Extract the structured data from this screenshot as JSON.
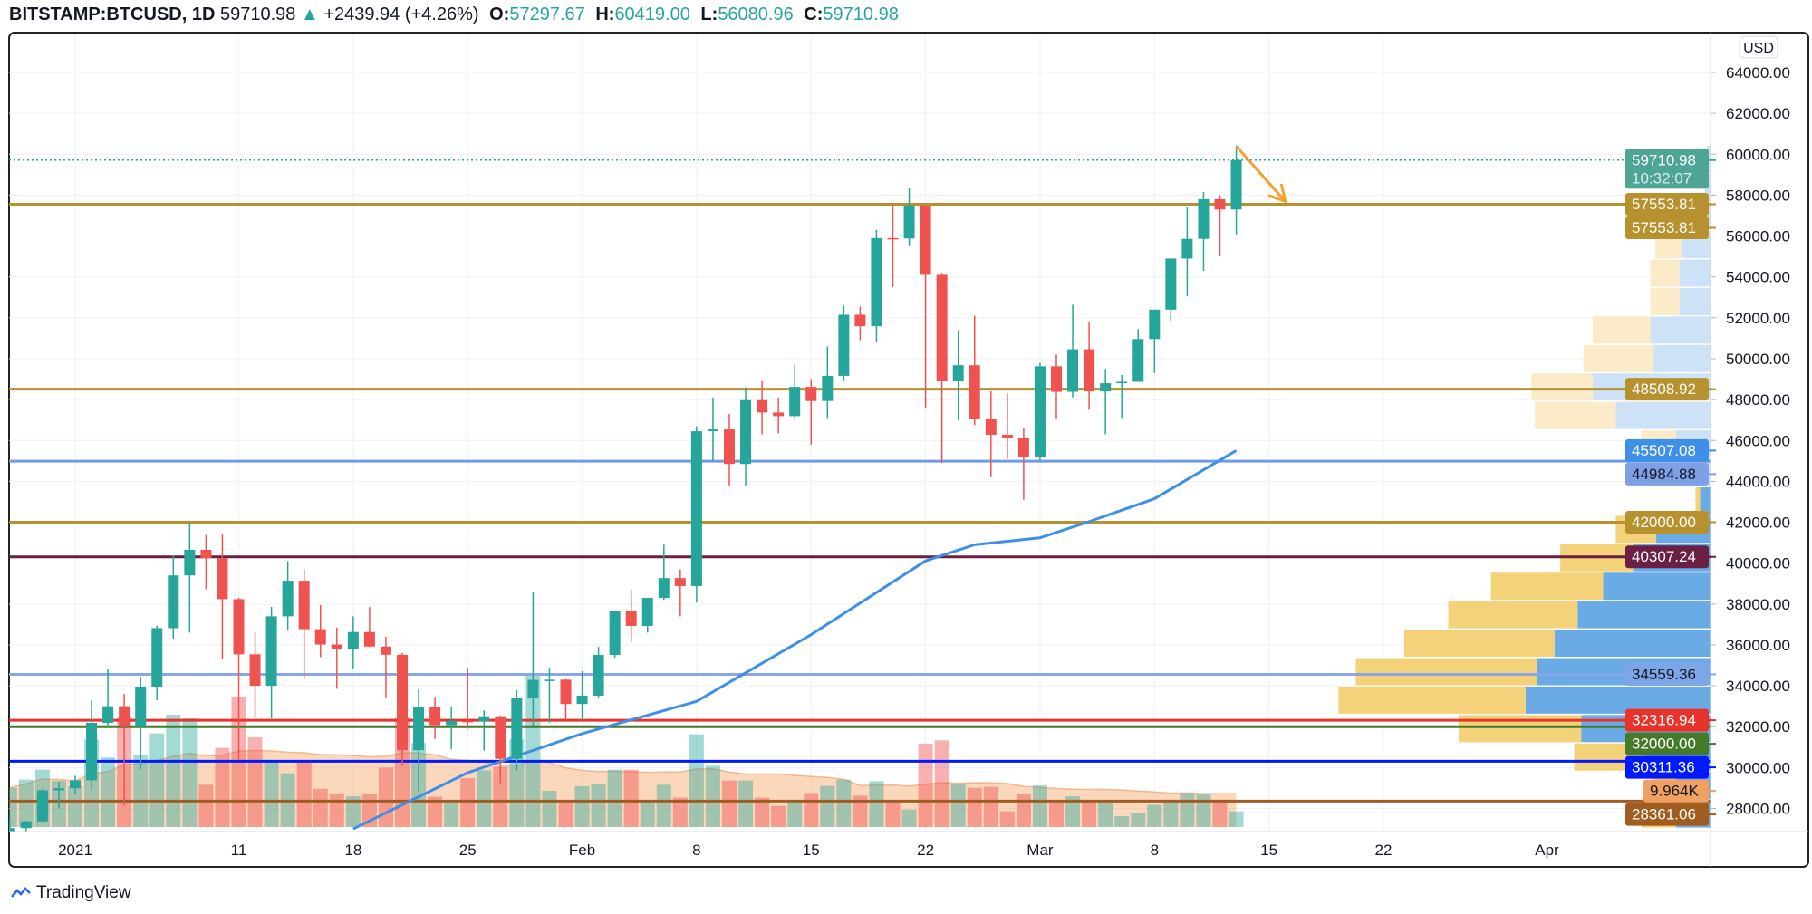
{
  "header": {
    "symbol": "BITSTAMP:BTCUSD, 1D",
    "last": "59710.98",
    "change": "+2439.94 (+4.26%)",
    "o_label": "O:",
    "o": "57297.67",
    "h_label": "H:",
    "h": "60419.00",
    "l_label": "L:",
    "l": "56080.96",
    "c_label": "C:",
    "c": "59710.98"
  },
  "currency_button": "USD",
  "countdown": "10:32:07",
  "logo_text": "TradingView",
  "colors": {
    "up": "#26a69a",
    "down": "#ef5350",
    "ma": "#3d8fe8",
    "vol_ma": "#f29a5c",
    "vp_up": "#6aabe6",
    "vp_down": "#f3d27a",
    "vp_up_light": "#cde2f6",
    "vp_down_light": "#fbebc8"
  },
  "chart_data": {
    "type": "candlestick",
    "xlabel": "",
    "ylabel": "",
    "ylim": [
      27000,
      65000
    ],
    "grid": true,
    "price_ticks": [
      "28000.00",
      "30000.00",
      "32000.00",
      "34000.00",
      "36000.00",
      "38000.00",
      "40000.00",
      "42000.00",
      "44000.00",
      "46000.00",
      "48000.00",
      "50000.00",
      "52000.00",
      "54000.00",
      "56000.00",
      "58000.00",
      "60000.00",
      "62000.00",
      "64000.00"
    ],
    "date_ticks": [
      {
        "date": "2021-01-01",
        "label": "2021"
      },
      {
        "date": "2021-01-11",
        "label": "11"
      },
      {
        "date": "2021-01-18",
        "label": "18"
      },
      {
        "date": "2021-01-25",
        "label": "25"
      },
      {
        "date": "2021-02-01",
        "label": "Feb"
      },
      {
        "date": "2021-02-08",
        "label": "8"
      },
      {
        "date": "2021-02-15",
        "label": "15"
      },
      {
        "date": "2021-02-22",
        "label": "22"
      },
      {
        "date": "2021-03-01",
        "label": "Mar"
      },
      {
        "date": "2021-03-08",
        "label": "8"
      },
      {
        "date": "2021-03-15",
        "label": "15"
      },
      {
        "date": "2021-03-22",
        "label": "22"
      },
      {
        "date": "2021-04-01",
        "label": "Apr"
      }
    ],
    "columns": [
      "date",
      "open",
      "high",
      "low",
      "close",
      "volume_k"
    ],
    "candles": [
      [
        "2020-12-28",
        26280,
        27500,
        26100,
        27040,
        24.9
      ],
      [
        "2020-12-29",
        27040,
        27400,
        25880,
        27370,
        30.1
      ],
      [
        "2020-12-30",
        27370,
        28990,
        27320,
        28890,
        36.4
      ],
      [
        "2020-12-31",
        28890,
        29300,
        28000,
        28990,
        29.3
      ],
      [
        "2021-01-01",
        28990,
        29600,
        28700,
        29380,
        25.9
      ],
      [
        "2021-01-02",
        29380,
        33300,
        28950,
        32190,
        55.6
      ],
      [
        "2021-01-03",
        32190,
        34800,
        31950,
        33000,
        44.1
      ],
      [
        "2021-01-04",
        33000,
        33600,
        28130,
        31990,
        70
      ],
      [
        "2021-01-05",
        31990,
        34440,
        29900,
        33960,
        46
      ],
      [
        "2021-01-06",
        33960,
        36940,
        33300,
        36820,
        59.4
      ],
      [
        "2021-01-07",
        36820,
        40360,
        36300,
        39400,
        71.3
      ],
      [
        "2021-01-08",
        39400,
        41950,
        36600,
        40650,
        69
      ],
      [
        "2021-01-09",
        40650,
        41380,
        38720,
        40240,
        26.8
      ],
      [
        "2021-01-10",
        40240,
        41400,
        35300,
        38240,
        50.2
      ],
      [
        "2021-01-11",
        38240,
        38300,
        30400,
        35540,
        82.8
      ],
      [
        "2021-01-12",
        35540,
        36630,
        32500,
        34000,
        56.9
      ],
      [
        "2021-01-13",
        34000,
        37860,
        32400,
        37400,
        41.6
      ],
      [
        "2021-01-14",
        37400,
        40100,
        36700,
        39140,
        34.1
      ],
      [
        "2021-01-15",
        39140,
        39700,
        34400,
        36770,
        41.6
      ],
      [
        "2021-01-16",
        36770,
        37950,
        35400,
        36020,
        24.3
      ],
      [
        "2021-01-17",
        36020,
        36850,
        33850,
        35800,
        21.1
      ],
      [
        "2021-01-18",
        35800,
        37400,
        34800,
        36630,
        19.5
      ],
      [
        "2021-01-19",
        36630,
        37850,
        35900,
        35920,
        20.7
      ],
      [
        "2021-01-20",
        35920,
        36400,
        33400,
        35520,
        37.7
      ],
      [
        "2021-01-21",
        35520,
        35600,
        30071,
        30850,
        70
      ],
      [
        "2021-01-22",
        30850,
        33830,
        28850,
        32940,
        53.3
      ],
      [
        "2021-01-23",
        32940,
        33460,
        31400,
        32080,
        19.2
      ],
      [
        "2021-01-24",
        32080,
        32960,
        30900,
        32280,
        14.9
      ],
      [
        "2021-01-25",
        32280,
        34880,
        31900,
        32260,
        31
      ],
      [
        "2021-01-26",
        32260,
        32800,
        30830,
        32510,
        36
      ],
      [
        "2021-01-27",
        32510,
        32550,
        29240,
        30430,
        38.3
      ],
      [
        "2021-01-28",
        30430,
        33780,
        29850,
        33410,
        55.6
      ],
      [
        "2021-01-29",
        33410,
        38600,
        31990,
        34290,
        97
      ],
      [
        "2021-01-30",
        34290,
        34880,
        32200,
        34300,
        23
      ],
      [
        "2021-01-31",
        34300,
        34330,
        32300,
        33110,
        15.3
      ],
      [
        "2021-02-01",
        33110,
        34720,
        32300,
        33520,
        25.9
      ],
      [
        "2021-02-02",
        33520,
        35900,
        33430,
        35510,
        27.2
      ],
      [
        "2021-02-03",
        35510,
        37660,
        35370,
        37660,
        36.4
      ],
      [
        "2021-02-04",
        37660,
        38700,
        36150,
        36930,
        36.4
      ],
      [
        "2021-02-05",
        36930,
        38300,
        36600,
        38300,
        15.7
      ],
      [
        "2021-02-06",
        38300,
        40900,
        38200,
        39270,
        26.8
      ],
      [
        "2021-02-07",
        39270,
        39700,
        37400,
        38880,
        18.6
      ],
      [
        "2021-02-08",
        38880,
        46700,
        38070,
        46450,
        58.8
      ],
      [
        "2021-02-09",
        46450,
        48100,
        45000,
        46540,
        38.9
      ],
      [
        "2021-02-10",
        46540,
        47300,
        43800,
        44850,
        29.5
      ],
      [
        "2021-02-11",
        44850,
        48600,
        43800,
        47970,
        29.5
      ],
      [
        "2021-02-12",
        47970,
        48900,
        46300,
        47370,
        18.6
      ],
      [
        "2021-02-13",
        47370,
        48100,
        46350,
        47190,
        13.4
      ],
      [
        "2021-02-14",
        47190,
        49700,
        47100,
        48620,
        15.7
      ],
      [
        "2021-02-15",
        48620,
        49000,
        45800,
        47930,
        21.6
      ],
      [
        "2021-02-16",
        47930,
        50600,
        47100,
        49160,
        26.1
      ],
      [
        "2021-02-17",
        49160,
        52600,
        48900,
        52150,
        30.1
      ],
      [
        "2021-02-18",
        52150,
        52550,
        50900,
        51590,
        19.9
      ],
      [
        "2021-02-19",
        51590,
        56300,
        50800,
        55900,
        29.1
      ],
      [
        "2021-02-20",
        55900,
        57500,
        53500,
        55880,
        15.7
      ],
      [
        "2021-02-21",
        55880,
        58350,
        55500,
        57490,
        11.1
      ],
      [
        "2021-02-22",
        57490,
        57530,
        47600,
        54100,
        52.9
      ],
      [
        "2021-02-23",
        54100,
        54200,
        44900,
        48890,
        55
      ],
      [
        "2021-02-24",
        48890,
        51400,
        47000,
        49680,
        27.2
      ],
      [
        "2021-02-25",
        49680,
        52100,
        46750,
        47060,
        24.9
      ],
      [
        "2021-02-26",
        47060,
        48400,
        44200,
        46280,
        25.5
      ],
      [
        "2021-02-27",
        46280,
        48300,
        45100,
        46110,
        10
      ],
      [
        "2021-02-28",
        46110,
        46600,
        43100,
        45170,
        20.9
      ],
      [
        "2021-03-01",
        45170,
        49800,
        45000,
        49630,
        26.4
      ],
      [
        "2021-03-02",
        49630,
        50200,
        47050,
        48380,
        15.7
      ],
      [
        "2021-03-03",
        48380,
        52640,
        48100,
        50460,
        19.5
      ],
      [
        "2021-03-04",
        50460,
        51800,
        47500,
        48400,
        15.7
      ],
      [
        "2021-03-05",
        48400,
        49500,
        46300,
        48800,
        15.7
      ],
      [
        "2021-03-06",
        48800,
        49200,
        47100,
        48870,
        6.9
      ],
      [
        "2021-03-07",
        48870,
        51450,
        48870,
        50960,
        9.2
      ],
      [
        "2021-03-08",
        50960,
        52400,
        49300,
        52400,
        14
      ],
      [
        "2021-03-09",
        52400,
        54900,
        51850,
        54900,
        15.7
      ],
      [
        "2021-03-10",
        54900,
        57400,
        53050,
        55860,
        21.6
      ],
      [
        "2021-03-11",
        55860,
        58150,
        54300,
        57800,
        20.9
      ],
      [
        "2021-03-12",
        57800,
        58000,
        55000,
        57297.67,
        15.7
      ],
      [
        "2021-03-13",
        57297.67,
        60419,
        56080.96,
        59710.98,
        9.964
      ]
    ],
    "moving_average": [
      [
        "2021-01-18",
        27000
      ],
      [
        "2021-01-25",
        29750
      ],
      [
        "2021-02-01",
        31660
      ],
      [
        "2021-02-08",
        33240
      ],
      [
        "2021-02-15",
        36500
      ],
      [
        "2021-02-22",
        40110
      ],
      [
        "2021-02-25",
        40900
      ],
      [
        "2021-03-01",
        41240
      ],
      [
        "2021-03-04",
        42030
      ],
      [
        "2021-03-08",
        43150
      ],
      [
        "2021-03-13",
        45507.08
      ]
    ],
    "horizontal_levels": [
      {
        "price": 57553.81,
        "color": "#b8912f"
      },
      {
        "price": 48508.92,
        "color": "#b8912f"
      },
      {
        "price": 44984.88,
        "color": "#6d9be5"
      },
      {
        "price": 42000.0,
        "color": "#b8912f"
      },
      {
        "price": 40307.24,
        "color": "#6b1f42"
      },
      {
        "price": 34559.36,
        "color": "#86a8e8"
      },
      {
        "price": 32316.94,
        "color": "#e8322a"
      },
      {
        "price": 32000.0,
        "color": "#467a2b"
      },
      {
        "price": 30311.36,
        "color": "#0019ff"
      },
      {
        "price": 28361.06,
        "color": "#a15c20"
      }
    ],
    "axis_labels": [
      {
        "price": 59710.98,
        "text": "59710.98",
        "bg": "#4fa595",
        "fg": "#ffffff"
      },
      {
        "price": 57553.81,
        "text": "57553.81",
        "bg": "#b8912f",
        "fg": "#ffffff"
      },
      {
        "price": 57553.81,
        "text": "57553.81",
        "bg": "#b8912f",
        "fg": "#ffffff"
      },
      {
        "price": 48508.92,
        "text": "48508.92",
        "bg": "#b8912f",
        "fg": "#ffffff"
      },
      {
        "price": 45507.08,
        "text": "45507.08",
        "bg": "#3d8fe8",
        "fg": "#ffffff"
      },
      {
        "price": 44984.88,
        "text": "44984.88",
        "bg": "#7fa0e4",
        "fg": "#131722"
      },
      {
        "price": 42000.0,
        "text": "42000.00",
        "bg": "#b8912f",
        "fg": "#ffffff"
      },
      {
        "price": 40307.24,
        "text": "40307.24",
        "bg": "#6b1f42",
        "fg": "#ffffff"
      },
      {
        "price": 34559.36,
        "text": "34559.36",
        "bg": "#7ea6e6",
        "fg": "#131722"
      },
      {
        "price": 32316.94,
        "text": "32316.94",
        "bg": "#e8322a",
        "fg": "#ffffff"
      },
      {
        "price": 32000.0,
        "text": "32000.00",
        "bg": "#467a2b",
        "fg": "#ffffff"
      },
      {
        "price": 30311.36,
        "text": "30311.36",
        "bg": "#0019ff",
        "fg": "#ffffff"
      },
      {
        "price": 29300,
        "text": "9.964K",
        "bg": "#f0a060",
        "fg": "#131722"
      },
      {
        "price": 28361.06,
        "text": "28361.06",
        "bg": "#a15c20",
        "fg": "#ffffff"
      }
    ],
    "arrow": {
      "from": {
        "date": "2021-03-13",
        "price": 60390
      },
      "to": {
        "date": "2021-03-16",
        "price": 57690
      },
      "color": "#f5a030"
    },
    "volume_profile": {
      "price_range": [
        27000,
        60419
      ],
      "rows_bottom_up": [
        {
          "down": 30,
          "up": 30,
          "value_area": true
        },
        {
          "down": 20,
          "up": 30,
          "value_area": true
        },
        {
          "down": 60,
          "up": 58,
          "value_area": true
        },
        {
          "down": 106,
          "up": 112,
          "value_area": true
        },
        {
          "down": 162,
          "up": 160,
          "value_area": true
        },
        {
          "down": 157,
          "up": 150,
          "value_area": true
        },
        {
          "down": 130,
          "up": 135,
          "value_area": true
        },
        {
          "down": 112,
          "up": 115,
          "value_area": true
        },
        {
          "down": 97,
          "up": 93,
          "value_area": true
        },
        {
          "down": 63,
          "up": 67,
          "value_area": true
        },
        {
          "down": 35,
          "up": 47,
          "value_area": true
        },
        {
          "down": 4,
          "up": 9,
          "value_area": true
        },
        {
          "down": 25,
          "up": 25,
          "value_area": false
        },
        {
          "down": 30,
          "up": 30,
          "value_area": false
        },
        {
          "down": 70,
          "up": 82,
          "value_area": false
        },
        {
          "down": 53,
          "up": 102,
          "value_area": false
        },
        {
          "down": 60,
          "up": 50,
          "value_area": false
        },
        {
          "down": 50,
          "up": 52,
          "value_area": false
        },
        {
          "down": 25,
          "up": 27,
          "value_area": false
        },
        {
          "down": 25,
          "up": 27,
          "value_area": false
        },
        {
          "down": 23,
          "up": 25,
          "value_area": false
        },
        {
          "down": 32,
          "up": 35,
          "value_area": false
        },
        {
          "down": 0,
          "up": 5,
          "value_area": false
        },
        {
          "down": 0,
          "up": 3,
          "value_area": false
        }
      ]
    }
  }
}
